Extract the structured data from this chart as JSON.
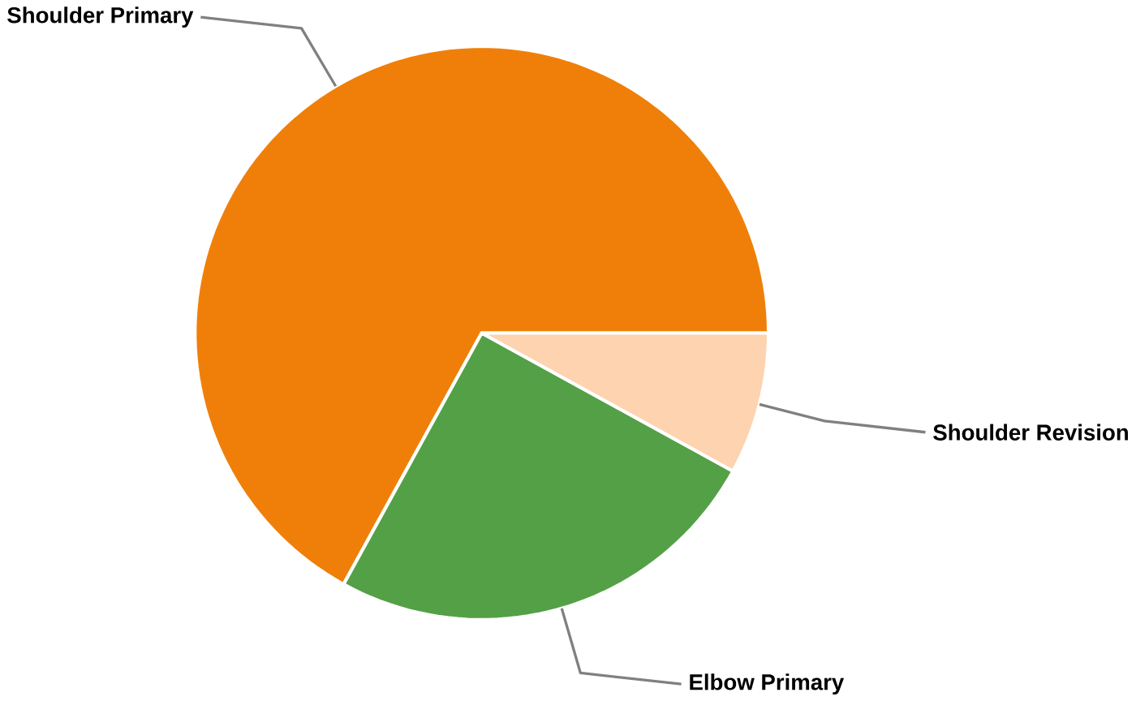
{
  "chart_data": {
    "type": "pie",
    "categories": [
      "Shoulder Primary",
      "Elbow Primary",
      "Shoulder Revision"
    ],
    "values": [
      67,
      25,
      8
    ],
    "colors": [
      "#f07f09",
      "#54a046",
      "#fdd3b0"
    ]
  }
}
